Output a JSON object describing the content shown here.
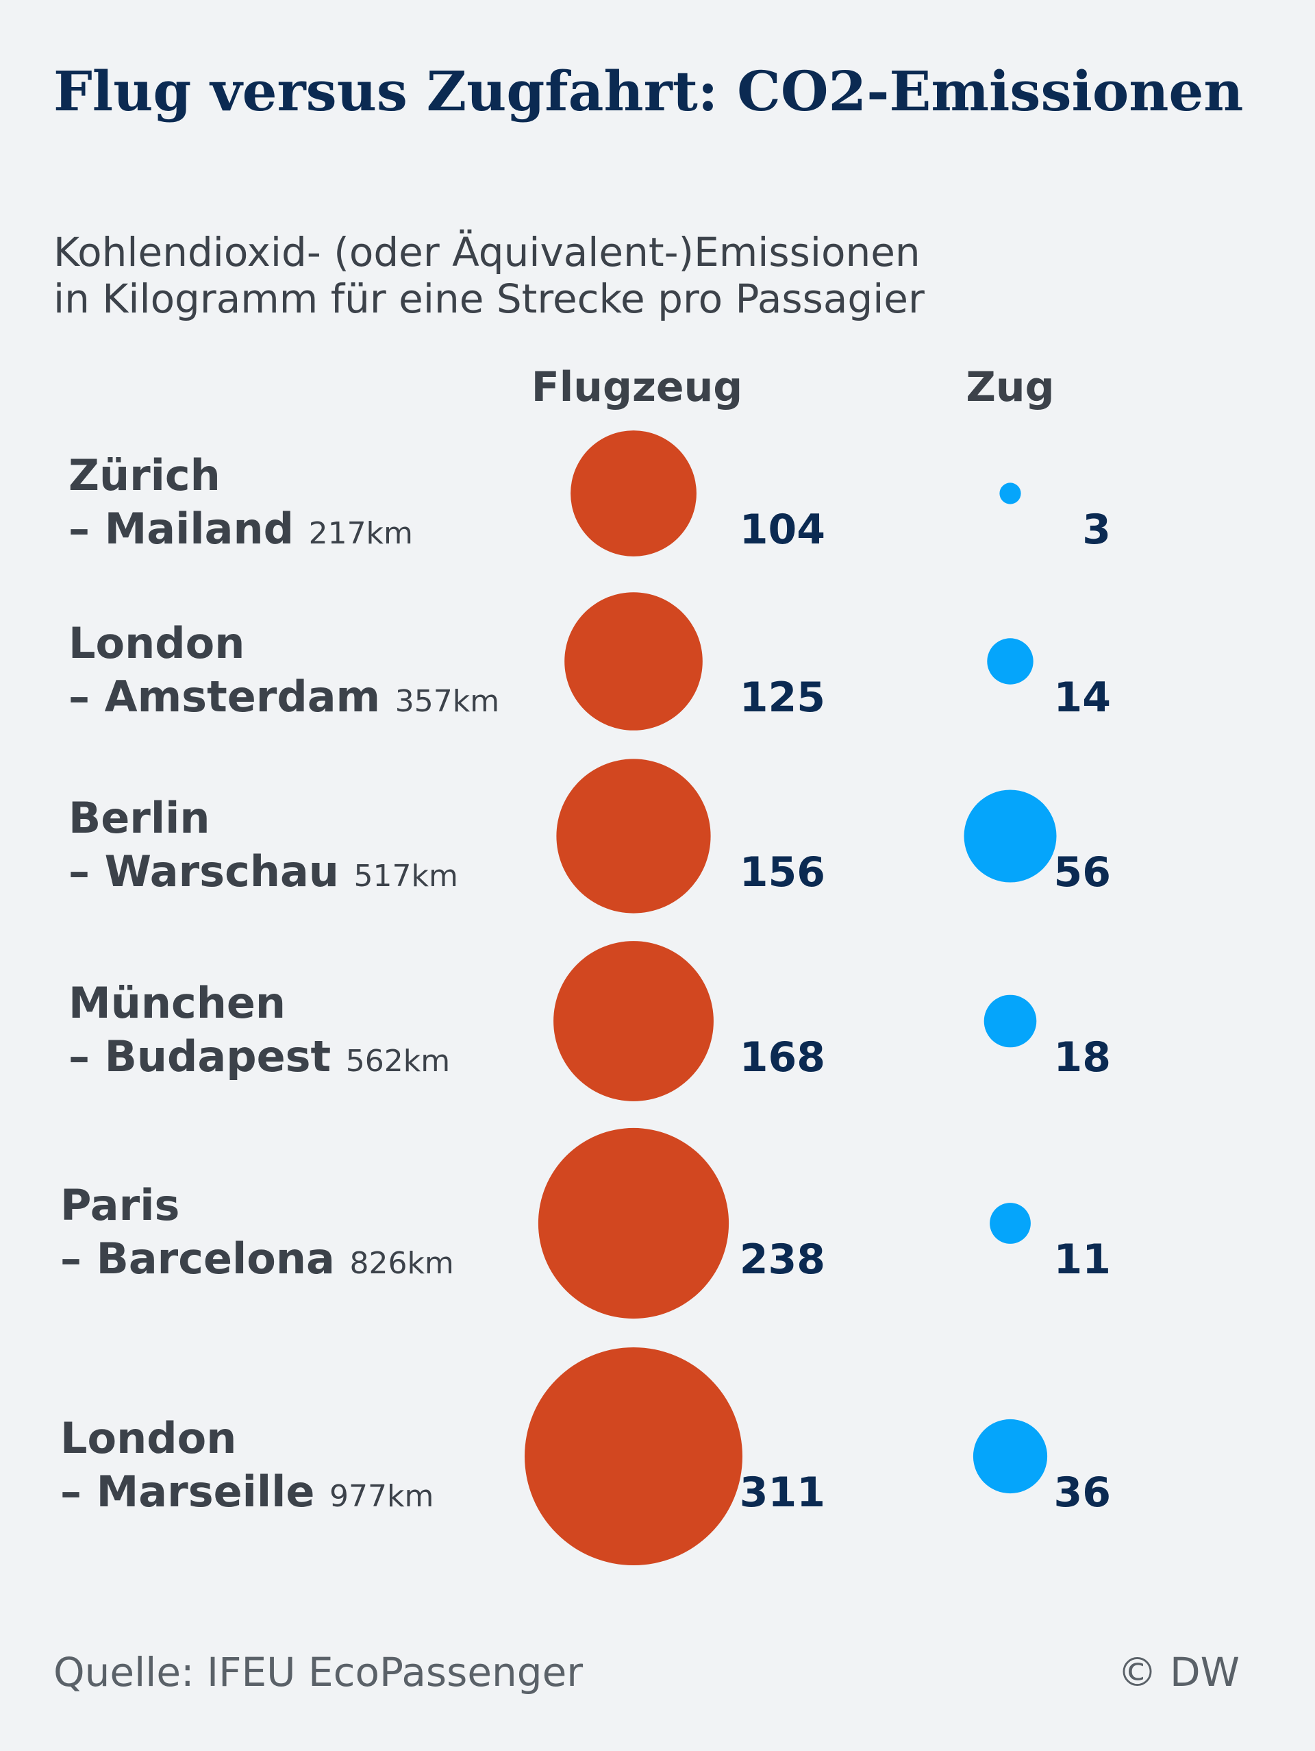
{
  "chart_data": {
    "type": "bubble",
    "title": "Flug versus Zugfahrt: CO2-Emissionen",
    "subtitle_lines": [
      "Kohlendioxid- (oder Äquivalent-)Emissionen",
      "in Kilogramm für eine Strecke pro Passagier"
    ],
    "series": [
      {
        "name": "Flugzeug",
        "color": "#d24720",
        "values": [
          104,
          125,
          156,
          168,
          238,
          311
        ]
      },
      {
        "name": "Zug",
        "color": "#05a5fb",
        "values": [
          3,
          14,
          56,
          18,
          11,
          36
        ]
      }
    ],
    "routes": [
      {
        "from": "Zürich",
        "to": "– Mailand",
        "distance": "217km"
      },
      {
        "from": "London",
        "to": "– Amsterdam",
        "distance": "357km"
      },
      {
        "from": "Berlin",
        "to": "– Warschau",
        "distance": "517km"
      },
      {
        "from": "München",
        "to": " – Budapest",
        "distance": "562km"
      },
      {
        "from": "Paris",
        "to": "– Barcelona",
        "distance": "826km"
      },
      {
        "from": "London",
        "to": "– Marseille",
        "distance": "977km"
      }
    ],
    "size_encoding": "area"
  },
  "footer": {
    "source": "Quelle: IFEU EcoPassenger",
    "copyright": "© DW"
  }
}
